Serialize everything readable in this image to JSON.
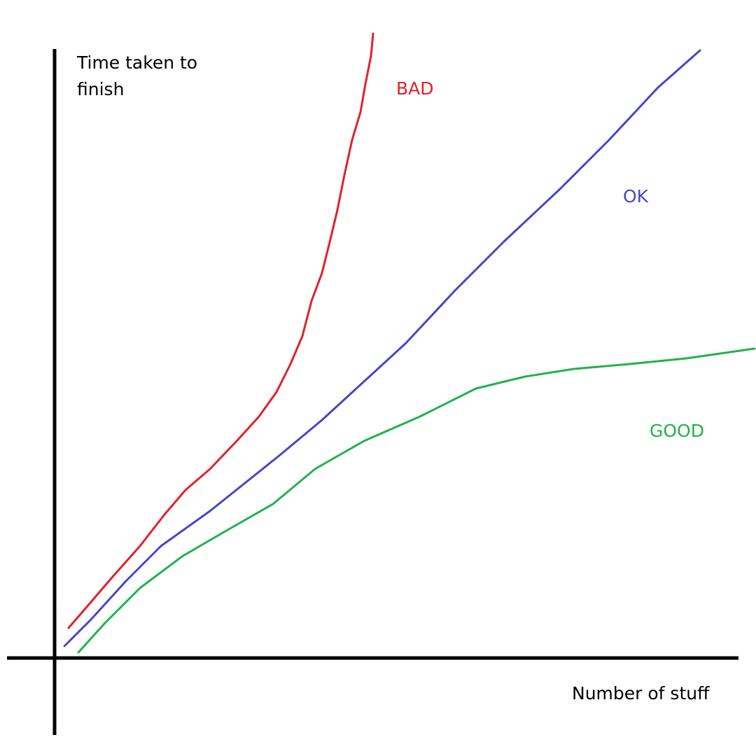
{
  "chart_data": {
    "type": "line",
    "y_label": "Time taken to finish",
    "x_label": "Number of stuff",
    "xlim": [
      0,
      100
    ],
    "ylim": [
      0,
      90
    ],
    "series": [
      {
        "name": "BAD",
        "color": "#e3202a",
        "x": [
          2,
          5.2,
          8.2,
          12.2,
          15.7,
          18.7,
          22.2,
          26.2,
          29.2,
          31.7,
          33.7,
          35.4,
          36.7,
          38.2,
          39.2,
          40.4,
          41.4,
          42.5,
          43.7,
          44.4,
          45.2,
          45.5
        ],
        "values": [
          4.3,
          8,
          11.5,
          16,
          20.5,
          24,
          27,
          31.2,
          34.5,
          38,
          42,
          46,
          51,
          55,
          59,
          64,
          69,
          74,
          78,
          82,
          86,
          89.2
        ]
      },
      {
        "name": "OK",
        "color": "#4646c8",
        "x": [
          1.4,
          5.2,
          10.2,
          15.2,
          22.2,
          32.2,
          38.2,
          44.2,
          50.2,
          57.2,
          64.2,
          72.2,
          79.2,
          86.2,
          92.2
        ],
        "values": [
          1.7,
          5.5,
          11,
          16,
          21,
          29,
          34,
          39.5,
          45,
          52.5,
          59.5,
          67,
          74,
          81.5,
          86.8
        ]
      },
      {
        "name": "GOOD",
        "color": "#22b14c",
        "x": [
          3.4,
          7.2,
          12.2,
          18.2,
          24.2,
          31.2,
          37.2,
          44.2,
          52.2,
          60.2,
          67.2,
          74.2,
          82.2,
          90.2,
          100
        ],
        "values": [
          0.8,
          5,
          10,
          14.5,
          18,
          22,
          27,
          31,
          34.5,
          38.5,
          40.2,
          41.3,
          42,
          42.8,
          44.2
        ]
      }
    ]
  }
}
